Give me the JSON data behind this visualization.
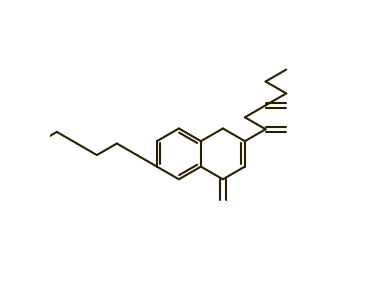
{
  "bg_color": "#ffffff",
  "line_color": "#2a2000",
  "line_width": 1.5,
  "figsize": [
    3.92,
    2.91
  ],
  "dpi": 100
}
